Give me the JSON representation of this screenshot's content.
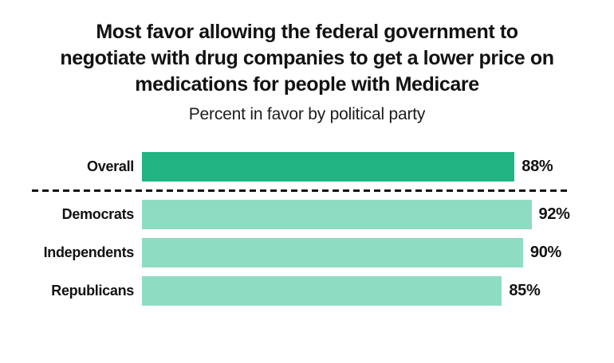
{
  "page": {
    "background_color": "#ffffff",
    "text_color": "#121212"
  },
  "chart_data": {
    "type": "bar",
    "orientation": "horizontal",
    "title": "Most favor allowing the federal government to negotiate with drug companies to get a lower price on medications for people with Medicare",
    "title_lines": [
      "Most favor allowing the federal government to",
      "negotiate with drug companies to get a lower price on",
      "medications for people with Medicare"
    ],
    "subtitle": "Percent in favor by political party",
    "categories": [
      "Overall",
      "Democrats",
      "Independents",
      "Republicans"
    ],
    "values": [
      88,
      92,
      90,
      85
    ],
    "value_labels": [
      "88%",
      "92%",
      "90%",
      "85%"
    ],
    "xlim": [
      0,
      100
    ],
    "grid": false,
    "legend": "none",
    "bar_colors": [
      "#22b483",
      "#8edcc1",
      "#8edcc1",
      "#8edcc1"
    ],
    "highlight_color": "#22b483",
    "party_color": "#8edcc1",
    "divider_style": "dashed",
    "divider_color": "#121212"
  }
}
